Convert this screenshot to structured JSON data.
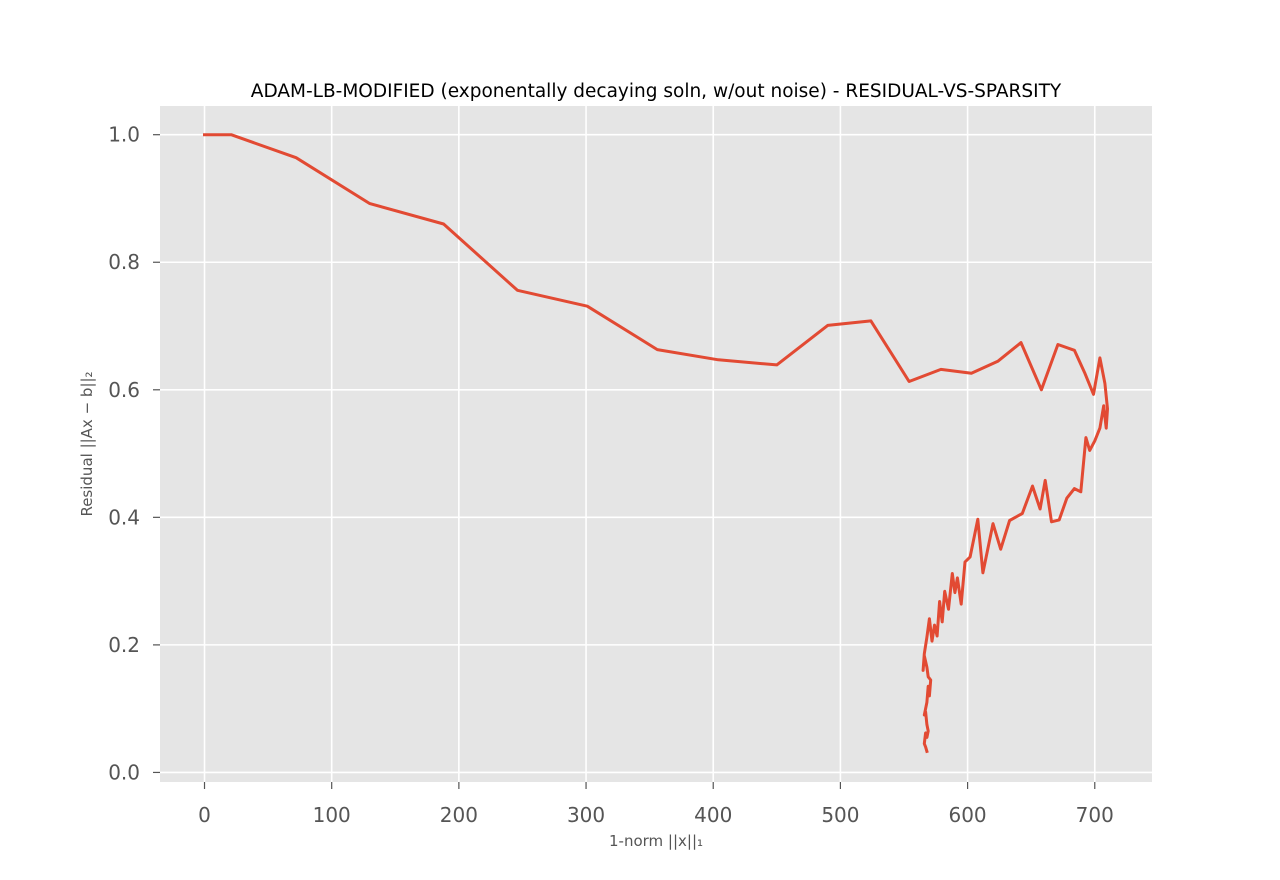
{
  "chart_data": {
    "type": "line",
    "title": "ADAM-LB-MODIFIED (exponentally decaying soln, w/out noise) - RESIDUAL-VS-SPARSITY",
    "xlabel": "1-norm ||x||₁",
    "ylabel": "Residual ||Ax − b||₂",
    "xlim": [
      -35,
      745
    ],
    "ylim": [
      -0.015,
      1.045
    ],
    "xticks": [
      0,
      100,
      200,
      300,
      400,
      500,
      600,
      700
    ],
    "xtick_labels": [
      "0",
      "100",
      "200",
      "300",
      "400",
      "500",
      "600",
      "700"
    ],
    "yticks": [
      0.0,
      0.2,
      0.4,
      0.6,
      0.8,
      1.0
    ],
    "ytick_labels": [
      "0.0",
      "0.2",
      "0.4",
      "0.6",
      "0.8",
      "1.0"
    ],
    "grid": true,
    "series": [
      {
        "color": "#E24A33",
        "x": [
          0,
          21,
          72,
          130,
          188,
          246,
          301,
          356,
          404,
          450,
          490,
          524,
          554,
          579,
          603,
          624,
          642,
          658,
          671,
          684,
          692,
          699,
          704,
          708,
          710,
          709,
          707,
          704,
          700,
          696,
          693,
          689,
          684,
          678,
          672,
          666,
          661,
          657,
          651,
          643,
          633,
          626,
          620,
          612,
          608,
          602,
          598,
          595,
          592,
          590,
          588,
          585,
          582,
          580,
          578,
          576,
          574,
          572,
          570,
          568,
          566,
          565,
          566,
          568,
          569,
          571,
          570,
          569,
          568,
          567,
          566,
          567,
          568,
          569,
          568,
          567,
          566,
          567,
          568
        ],
        "y": [
          1.0,
          1.0,
          0.964,
          0.892,
          0.86,
          0.756,
          0.731,
          0.663,
          0.647,
          0.639,
          0.701,
          0.708,
          0.613,
          0.632,
          0.626,
          0.645,
          0.674,
          0.6,
          0.671,
          0.662,
          0.627,
          0.593,
          0.65,
          0.61,
          0.57,
          0.54,
          0.575,
          0.54,
          0.52,
          0.505,
          0.525,
          0.44,
          0.445,
          0.43,
          0.396,
          0.393,
          0.458,
          0.413,
          0.449,
          0.406,
          0.395,
          0.35,
          0.39,
          0.313,
          0.397,
          0.338,
          0.33,
          0.264,
          0.305,
          0.282,
          0.312,
          0.256,
          0.284,
          0.236,
          0.268,
          0.214,
          0.231,
          0.206,
          0.241,
          0.212,
          0.186,
          0.16,
          0.183,
          0.165,
          0.15,
          0.145,
          0.12,
          0.135,
          0.11,
          0.1,
          0.09,
          0.095,
          0.075,
          0.065,
          0.055,
          0.062,
          0.045,
          0.04,
          0.033
        ]
      }
    ]
  }
}
